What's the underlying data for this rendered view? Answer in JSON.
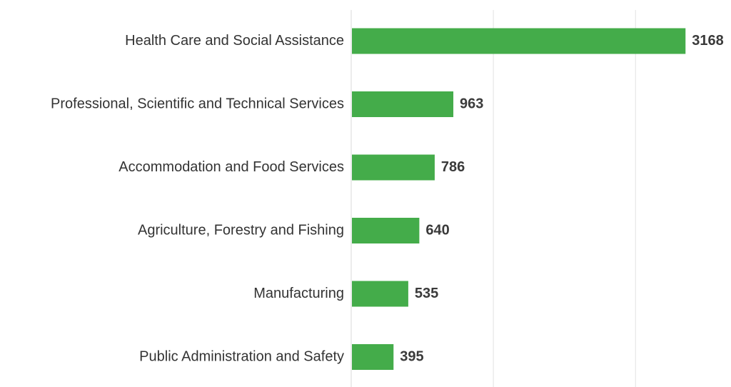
{
  "chart_data": {
    "type": "bar",
    "orientation": "horizontal",
    "categories": [
      "Health Care and Social Assistance",
      "Professional, Scientific and Technical Services",
      "Accommodation and Food Services",
      "Agriculture, Forestry and Fishing",
      "Manufacturing",
      "Public Administration and Safety"
    ],
    "values": [
      3168,
      963,
      786,
      640,
      535,
      395
    ],
    "data_labels": [
      "3168",
      "963",
      "786",
      "640",
      "535",
      "395"
    ],
    "xlim": [
      0,
      3500
    ],
    "gridlines": [
      0,
      1350,
      2700
    ],
    "grid": true,
    "legend": "none",
    "bar_color": "#44ac4a",
    "title": "",
    "xlabel": "",
    "ylabel": ""
  }
}
